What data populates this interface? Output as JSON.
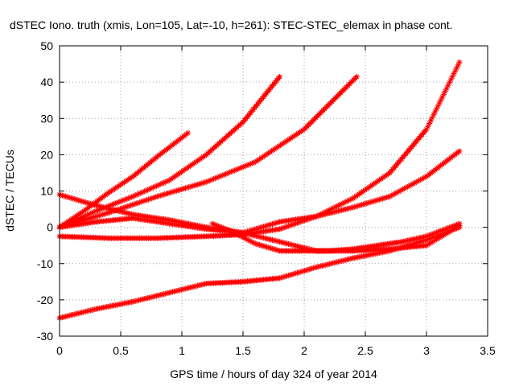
{
  "chart_data": {
    "type": "scatter",
    "title": "dSTEC Iono. truth (xmis, Lon=105, Lat=-10, h=261): STEC-STEC_elemax in phase cont.",
    "xlabel": "GPS time / hours of day 324 of year 2014",
    "ylabel": "dSTEC  / TECUs",
    "xlim": [
      0,
      3.5
    ],
    "ylim": [
      -30,
      50
    ],
    "xticks": [
      "0",
      "0.5",
      "1",
      "1.5",
      "2",
      "2.5",
      "3",
      "3.5"
    ],
    "yticks": [
      "-30",
      "-20",
      "-10",
      "0",
      "10",
      "20",
      "30",
      "40",
      "50"
    ],
    "grid": true,
    "marker": "plus",
    "color": "#ff0000",
    "series": [
      {
        "x": [
          0.0,
          0.2,
          0.4,
          0.6,
          0.8,
          1.05
        ],
        "y": [
          0,
          4.5,
          9.5,
          14,
          19.5,
          26
        ]
      },
      {
        "x": [
          0.0,
          0.3,
          0.6,
          0.9,
          1.2,
          1.5,
          1.8
        ],
        "y": [
          0,
          4.5,
          8.5,
          13,
          20,
          29,
          41.5
        ]
      },
      {
        "x": [
          0.0,
          0.4,
          0.8,
          1.2,
          1.6,
          2.0,
          2.43
        ],
        "y": [
          0,
          4,
          8.5,
          12.5,
          18,
          27,
          41.5
        ]
      },
      {
        "x": [
          0.0,
          0.4,
          0.8,
          1.2,
          1.5,
          1.8,
          2.1,
          2.4,
          2.7,
          3.0,
          3.27
        ],
        "y": [
          -2.5,
          -3,
          -3,
          -2.5,
          -2,
          -0.5,
          3,
          8,
          15,
          27,
          45.5
        ]
      },
      {
        "x": [
          0.0,
          0.3,
          0.6,
          0.9,
          1.2,
          1.5,
          1.8,
          2.1,
          2.4,
          2.7,
          3.0,
          3.27
        ],
        "y": [
          9,
          6,
          3.5,
          2,
          0,
          -1.5,
          -4,
          -6.5,
          -6.5,
          -6,
          -5,
          0.5
        ]
      },
      {
        "x": [
          0.0,
          0.3,
          0.6,
          0.9,
          1.2,
          1.5,
          1.8,
          2.1,
          2.4,
          2.7,
          3.0,
          3.27
        ],
        "y": [
          0,
          1.5,
          2.5,
          1,
          -0.5,
          -1.5,
          1.5,
          3,
          5.5,
          8.5,
          14,
          21
        ]
      },
      {
        "x": [
          1.25,
          1.4,
          1.6,
          1.8,
          2.0,
          2.2,
          2.4,
          2.6,
          2.8,
          3.0,
          3.27
        ],
        "y": [
          1,
          -1,
          -4.5,
          -6.5,
          -6.5,
          -6.5,
          -6,
          -5,
          -4,
          -2.5,
          1
        ]
      },
      {
        "x": [
          0.0,
          0.3,
          0.6,
          0.9,
          1.2,
          1.5,
          1.8,
          2.1,
          2.4,
          2.7,
          3.0,
          3.27
        ],
        "y": [
          -25,
          -22.5,
          -20.5,
          -18,
          -15.5,
          -15,
          -14,
          -11,
          -8.5,
          -6.5,
          -3.5,
          0
        ]
      }
    ]
  }
}
